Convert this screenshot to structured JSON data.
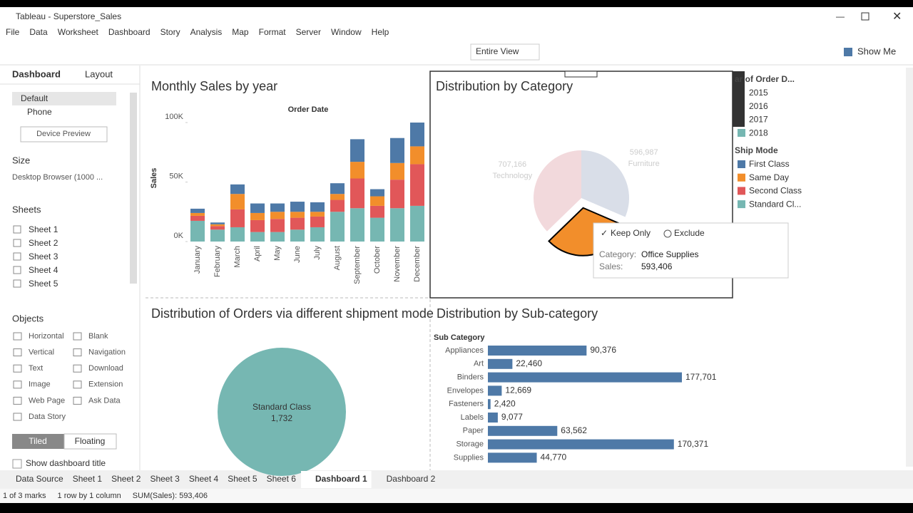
{
  "window_title": "Tableau - Superstore_Sales",
  "menu": [
    "File",
    "Data",
    "Worksheet",
    "Dashboard",
    "Story",
    "Analysis",
    "Map",
    "Format",
    "Server",
    "Window",
    "Help"
  ],
  "toolbar": {
    "view": "Entire View",
    "show_me": "Show Me"
  },
  "side_panel": {
    "tabs": [
      "Dashboard",
      "Layout"
    ],
    "devices": [
      "Default",
      "Phone"
    ],
    "device_preview": "Device Preview",
    "size_heading": "Size",
    "size": "Desktop Browser (1000 ...",
    "sheets_heading": "Sheets",
    "sheets": [
      "Sheet 1",
      "Sheet 2",
      "Sheet 3",
      "Sheet 4",
      "Sheet 5"
    ],
    "objects_heading": "Objects",
    "objects": [
      "Horizontal",
      "Blank",
      "Vertical",
      "Navigation",
      "Text",
      "Download",
      "Image",
      "Extension",
      "Web Page",
      "Ask Data",
      "Data Story"
    ],
    "layout_modes": [
      "Tiled",
      "Floating"
    ],
    "show_title": "Show dashboard title"
  },
  "charts": [
    {
      "type": "stacked_bar",
      "title": "Monthly Sales by year",
      "x_label": "Order Date",
      "y_label": "Sales",
      "categories": [
        "January",
        "February",
        "March",
        "April",
        "May",
        "June",
        "July",
        "August",
        "September",
        "October",
        "November",
        "December"
      ],
      "series": [
        {
          "name": "Standard Cl...",
          "color": "#76b7b2",
          "values": [
            17400,
            10000,
            12000,
            8000,
            8000,
            10000,
            12000,
            25000,
            28000,
            20000,
            28000,
            30000
          ]
        },
        {
          "name": "Second Class",
          "color": "#e15759",
          "values": [
            4200,
            3000,
            15000,
            10000,
            11000,
            10000,
            9000,
            10000,
            25000,
            10000,
            24000,
            35000
          ]
        },
        {
          "name": "Same Day",
          "color": "#f28e2b",
          "values": [
            2400,
            1500,
            13000,
            6000,
            6000,
            5000,
            4000,
            5000,
            14000,
            8000,
            14000,
            15000
          ]
        },
        {
          "name": "First Class",
          "color": "#4e79a7",
          "values": [
            3600,
            1500,
            8000,
            8000,
            7000,
            8500,
            8000,
            9000,
            19000,
            6000,
            21000,
            20000
          ]
        }
      ],
      "ylim": [
        0,
        100000
      ],
      "yticks": [
        {
          "value": 0,
          "label": "0K"
        },
        {
          "value": 50000,
          "label": "50K"
        },
        {
          "value": 100000,
          "label": "100K"
        }
      ]
    },
    {
      "type": "pie",
      "title": "Distribution by Category",
      "categories": [
        "Furniture",
        "Office Supplies",
        "Technology"
      ],
      "values": [
        596987,
        593406,
        707166
      ],
      "value_labels": [
        "596,987",
        "593,406",
        "707,166"
      ],
      "colors": [
        "#d9dee8",
        "#f28e2b",
        "#f2d9dc"
      ],
      "highlight": 1
    },
    {
      "type": "bubble",
      "title": "Distribution of Orders via different shipment mode",
      "categories": [
        "Standard Class"
      ],
      "values": [
        1732
      ],
      "value_labels": [
        "1,732"
      ],
      "color": "#76b7b2"
    },
    {
      "type": "hbar",
      "title": "Distribution by Sub-category",
      "y_label": "Sub Category",
      "categories": [
        "Appliances",
        "Art",
        "Binders",
        "Envelopes",
        "Fasteners",
        "Labels",
        "Paper",
        "Storage",
        "Supplies"
      ],
      "values": [
        90376,
        22460,
        177701,
        12669,
        2420,
        9077,
        63562,
        170371,
        44770
      ],
      "value_labels": [
        "90,376",
        "22,460",
        "177,701",
        "12,669",
        "2,420",
        "9,077",
        "63,562",
        "170,371",
        "44,770"
      ],
      "color": "#4e79a7"
    }
  ],
  "legends": {
    "year": {
      "title": "ar of Order D...",
      "items": [
        "2015",
        "2016",
        "2017",
        "2018"
      ]
    },
    "ship_mode_title": "Ship Mode"
  },
  "tooltip": {
    "actions": [
      "Keep Only",
      "Exclude"
    ],
    "fields": [
      {
        "label": "Category:",
        "value": "Office Supplies"
      },
      {
        "label": "Sales:",
        "value": "593,406"
      }
    ]
  },
  "tabs": [
    "Data Source",
    "Sheet 1",
    "Sheet 2",
    "Sheet 3",
    "Sheet 4",
    "Sheet 5",
    "Sheet 6",
    "Dashboard 1",
    "Dashboard 2"
  ],
  "active_tab": 7,
  "status": [
    "1 of 3 marks",
    "1 row by 1 column",
    "SUM(Sales): 593,406"
  ]
}
